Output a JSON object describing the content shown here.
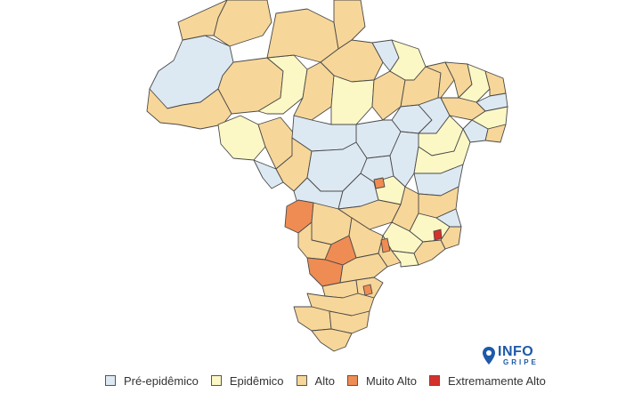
{
  "colors": {
    "pre_epidemico": "#dde9f2",
    "epidemico": "#fcf8c6",
    "alto": "#f7d699",
    "muito_alto": "#ef8c53",
    "extremamente_alto": "#d7302b",
    "border": "#4a4a4a"
  },
  "legend": [
    {
      "key": "pre_epidemico",
      "label": "Pré-epidêmico"
    },
    {
      "key": "epidemico",
      "label": "Epidêmico"
    },
    {
      "key": "alto",
      "label": "Alto"
    },
    {
      "key": "muito_alto",
      "label": "Muito Alto"
    },
    {
      "key": "extremamente_alto",
      "label": "Extremamente Alto"
    }
  ],
  "logo": {
    "main": "INFO",
    "sub": "GRIPE",
    "icon": "map-pin-icon"
  }
}
